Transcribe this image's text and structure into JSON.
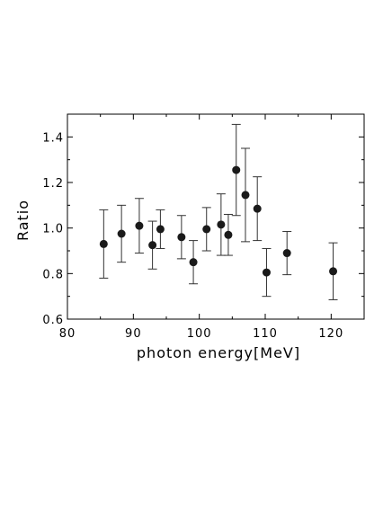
{
  "chart_data": {
    "type": "scatter",
    "title": "",
    "xlabel": "photon energy[MeV]",
    "ylabel": "Ratio",
    "xlim": [
      80,
      125
    ],
    "ylim": [
      0.6,
      1.5
    ],
    "x_ticks": [
      80,
      90,
      100,
      110,
      120
    ],
    "y_ticks": [
      0.6,
      0.8,
      1.0,
      1.2,
      1.4
    ],
    "x_tick_labels": [
      "80",
      "90",
      "100",
      "110",
      "120"
    ],
    "y_tick_labels": [
      "0.6",
      "0.8",
      "1.0",
      "1.2",
      "1.4"
    ],
    "marker_color": "#1a1a1a",
    "grid": false,
    "series": [
      {
        "points": [
          {
            "x": 85.5,
            "y": 0.93,
            "err": 0.15
          },
          {
            "x": 88.2,
            "y": 0.975,
            "err": 0.125
          },
          {
            "x": 90.9,
            "y": 1.01,
            "err": 0.12
          },
          {
            "x": 92.9,
            "y": 0.925,
            "err": 0.105
          },
          {
            "x": 94.1,
            "y": 0.995,
            "err": 0.085
          },
          {
            "x": 97.3,
            "y": 0.96,
            "err": 0.095
          },
          {
            "x": 99.1,
            "y": 0.85,
            "err": 0.095
          },
          {
            "x": 101.1,
            "y": 0.995,
            "err": 0.095
          },
          {
            "x": 103.3,
            "y": 1.015,
            "err": 0.135
          },
          {
            "x": 104.4,
            "y": 0.97,
            "err": 0.09
          },
          {
            "x": 105.6,
            "y": 1.255,
            "err": 0.2
          },
          {
            "x": 107.0,
            "y": 1.145,
            "err": 0.205
          },
          {
            "x": 108.8,
            "y": 1.085,
            "err": 0.14
          },
          {
            "x": 110.2,
            "y": 0.805,
            "err": 0.105
          },
          {
            "x": 113.3,
            "y": 0.89,
            "err": 0.095
          },
          {
            "x": 120.3,
            "y": 0.81,
            "err": 0.125
          }
        ]
      }
    ]
  }
}
